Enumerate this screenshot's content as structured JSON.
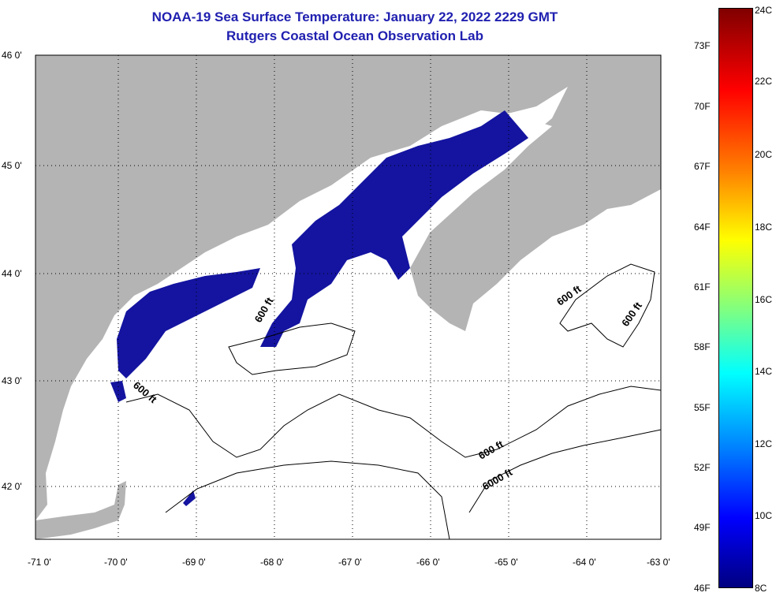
{
  "title": {
    "line1": "NOAA-19 Sea Surface Temperature:  January 22, 2022 2229 GMT",
    "line2": "Rutgers Coastal Ocean Observation Lab"
  },
  "map": {
    "lat_labels": [
      "46 0'",
      "45 0'",
      "44 0'",
      "43 0'",
      "42 0'"
    ],
    "lon_labels": [
      "-71 0'",
      "-70 0'",
      "-69 0'",
      "-68 0'",
      "-67 0'",
      "-66 0'",
      "-65 0'",
      "-64 0'",
      "-63 0'"
    ],
    "contour_labels": [
      "600 ft",
      "600 ft",
      "600 ft",
      "600 ft",
      "600 ft",
      "6000 ft"
    ],
    "colors": {
      "land": "#b4b4b4",
      "ocean": "#ffffff",
      "sst": "#1414a0"
    }
  },
  "colorbar": {
    "fahrenheit": [
      "73F",
      "70F",
      "67F",
      "64F",
      "61F",
      "58F",
      "55F",
      "52F",
      "49F",
      "46F"
    ],
    "celsius": [
      "24C",
      "22C",
      "20C",
      "18C",
      "16C",
      "14C",
      "12C",
      "10C",
      "8C"
    ]
  }
}
